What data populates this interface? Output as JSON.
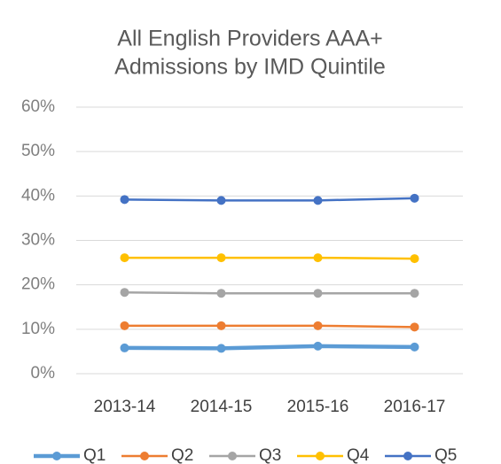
{
  "chart_data": {
    "type": "line",
    "title": [
      "All English Providers AAA+",
      "Admissions by IMD Quintile"
    ],
    "categories": [
      "2013-14",
      "2014-15",
      "2015-16",
      "2016-17"
    ],
    "series": [
      {
        "name": "Q1",
        "color": "#5b9bd5",
        "values": [
          5.8,
          5.7,
          6.2,
          6.0
        ]
      },
      {
        "name": "Q2",
        "color": "#ed7d31",
        "values": [
          10.8,
          10.8,
          10.8,
          10.5
        ]
      },
      {
        "name": "Q3",
        "color": "#a5a5a5",
        "values": [
          18.3,
          18.1,
          18.1,
          18.1
        ]
      },
      {
        "name": "Q4",
        "color": "#ffc000",
        "values": [
          26.1,
          26.1,
          26.1,
          25.9
        ]
      },
      {
        "name": "Q5",
        "color": "#4472c4",
        "values": [
          39.2,
          39.0,
          39.0,
          39.5
        ]
      }
    ],
    "ylim": [
      0,
      60
    ],
    "yticks": [
      {
        "value": 0,
        "label": "0%"
      },
      {
        "value": 10,
        "label": "10%"
      },
      {
        "value": 20,
        "label": "20%"
      },
      {
        "value": 30,
        "label": "30%"
      },
      {
        "value": 40,
        "label": "40%"
      },
      {
        "value": 50,
        "label": "50%"
      },
      {
        "value": 60,
        "label": "60%"
      }
    ],
    "grid": true,
    "legend": "bottom"
  }
}
